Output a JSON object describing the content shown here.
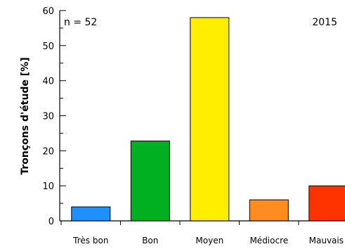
{
  "chart_data": {
    "type": "bar",
    "ylabel": "Tronçons d'étude [%]",
    "xlabel": "",
    "ylim": [
      0,
      60
    ],
    "yticks": [
      0,
      10,
      20,
      30,
      40,
      50,
      60
    ],
    "y_minor_step": 5,
    "categories": [
      "Très bon",
      "Bon",
      "Moyen",
      "Médiocre",
      "Mauvais"
    ],
    "values": [
      4,
      22.8,
      58,
      6,
      10
    ],
    "colors": [
      "#1e90ff",
      "#00b020",
      "#ffee00",
      "#ff8c20",
      "#ff3300"
    ],
    "annotations": {
      "sample_size": "n = 52",
      "year": "2015"
    },
    "grid": false,
    "legend": "none"
  }
}
